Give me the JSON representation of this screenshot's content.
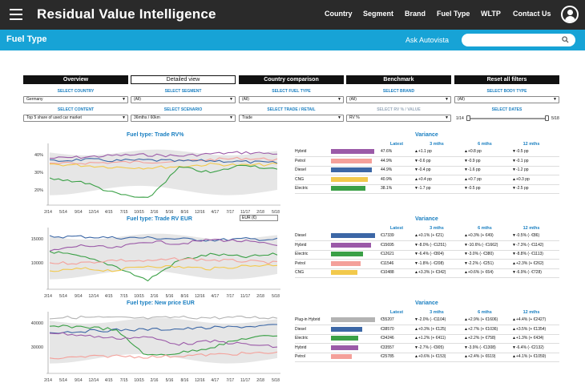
{
  "header": {
    "title": "Residual Value Intelligence",
    "nav": [
      "Country",
      "Segment",
      "Brand",
      "Fuel Type",
      "WLTP",
      "Contact Us"
    ]
  },
  "subheader": {
    "title": "Fuel Type",
    "ask_label": "Ask Autovista",
    "search_placeholder": ""
  },
  "tabs": [
    "Overview",
    "Detailed view",
    "Country comparison",
    "Benchmark",
    "Reset all filters"
  ],
  "filters": {
    "row1": [
      {
        "label": "SELECT COUNTRY",
        "value": "Germany"
      },
      {
        "label": "SELECT SEGMENT",
        "value": "(All)"
      },
      {
        "label": "SELECT FUEL TYPE",
        "value": "(All)"
      },
      {
        "label": "SELECT BRAND",
        "value": "(All)"
      },
      {
        "label": "SELECT BODY TYPE",
        "value": "(All)"
      }
    ],
    "row2": [
      {
        "label": "SELECT CONTENT",
        "value": "Top 5 share of used car market"
      },
      {
        "label": "SELECT SCENARIO",
        "value": "36mths / 60km"
      },
      {
        "label": "SELECT TRADE / RETAIL",
        "value": "Trade"
      },
      {
        "label": "SELECT RV % / VALUE",
        "value": "RV %"
      }
    ],
    "dates": {
      "label": "SELECT DATES",
      "start": "1/14",
      "end": "5/18"
    }
  },
  "colors": {
    "topbar": "#2a2a2a",
    "subbar": "#17a3d6",
    "Hybrid": "#9b5aa8",
    "Petrol": "#f4a09a",
    "Diesel": "#3c67a6",
    "CNG": "#f2c94c",
    "Electric": "#3aa046",
    "Plug-in Hybrid": "#b3b3b3"
  },
  "xticks": [
    "2/14",
    "5/14",
    "9/14",
    "12/14",
    "4/15",
    "7/15",
    "10/15",
    "2/16",
    "5/16",
    "8/16",
    "12/16",
    "4/17",
    "7/17",
    "11/17",
    "2/18",
    "5/18"
  ],
  "var_headers": {
    "title": "Variance",
    "cols": [
      "Latest",
      "3 mths",
      "6 mths",
      "12 mths"
    ]
  },
  "panels": [
    {
      "title": "Fuel type: Trade RV%",
      "yticks": [
        "40%",
        "30%",
        "20%"
      ],
      "rows": [
        {
          "name": "Hybrid",
          "latest": "47.6%",
          "bar": 0.98,
          "m3": "▲+1.1 pp",
          "m6": "▲+0.8 pp",
          "m12": "▼-0.5 pp"
        },
        {
          "name": "Petrol",
          "latest": "44.9%",
          "bar": 0.92,
          "m3": "▼-0.6 pp",
          "m6": "▼-0.9 pp",
          "m12": "▼-0.1 pp"
        },
        {
          "name": "Diesel",
          "latest": "44.9%",
          "bar": 0.92,
          "m3": "▼-0.4 pp",
          "m6": "▼-1.6 pp",
          "m12": "▼-1.2 pp"
        },
        {
          "name": "CNG",
          "latest": "40.9%",
          "bar": 0.84,
          "m3": "▲+0.4 pp",
          "m6": "▲+0.7 pp",
          "m12": "▲+0.3 pp"
        },
        {
          "name": "Electric",
          "latest": "38.1%",
          "bar": 0.78,
          "m3": "▼-1.7 pp",
          "m6": "▼-0.5 pp",
          "m12": "▼-2.5 pp"
        }
      ]
    },
    {
      "title": "Fuel type: Trade RV EUR",
      "currency": "EUR (€)",
      "yticks": [
        "15000",
        "10000"
      ],
      "rows": [
        {
          "name": "Diesel",
          "latest": "€17339",
          "bar": 1.0,
          "m3": "▲+0.1% (+ €21)",
          "m6": "▲+0.3% (+ €49)",
          "m12": "▼-0.5% (- €86)"
        },
        {
          "name": "Hybrid",
          "latest": "€15695",
          "bar": 0.9,
          "m3": "▼-8.0% (- €1251)",
          "m6": "▼-10.6% (- €1662)",
          "m12": "▼-7.3% (- €1142)"
        },
        {
          "name": "Electric",
          "latest": "€12621",
          "bar": 0.73,
          "m3": "▼-6.4% (- €804)",
          "m6": "▼-3.0% (- €380)",
          "m12": "▼-8.8% (- €1113)"
        },
        {
          "name": "Petrol",
          "latest": "€11546",
          "bar": 0.67,
          "m3": "▼-1.8% (- €208)",
          "m6": "▼-2.2% (- €251)",
          "m12": "▲+2.3% (+ €262)"
        },
        {
          "name": "CNG",
          "latest": "€10488",
          "bar": 0.6,
          "m3": "▲+3.3% (+ €342)",
          "m6": "▲+0.6% (+ €64)",
          "m12": "▼-6.9% (- €728)"
        }
      ]
    },
    {
      "title": "Fuel type: New price EUR",
      "yticks": [
        "40000",
        "30000"
      ],
      "rows": [
        {
          "name": "Plug-in Hybrid",
          "latest": "€55207",
          "bar": 1.0,
          "m3": "▼-2.0% (- €1104)",
          "m6": "▲+2.9% (+ €1606)",
          "m12": "▲+4.4% (+ €2427)"
        },
        {
          "name": "Diesel",
          "latest": "€38570",
          "bar": 0.7,
          "m3": "▲+0.3% (+ €125)",
          "m6": "▲+2.7% (+ €1036)",
          "m12": "▲+3.5% (+ €1354)"
        },
        {
          "name": "Electric",
          "latest": "€34246",
          "bar": 0.62,
          "m3": "▲+1.2% (+ €411)",
          "m6": "▲+2.2% (+ €758)",
          "m12": "▲+1.3% (+ €434)"
        },
        {
          "name": "Hybrid",
          "latest": "€33557",
          "bar": 0.61,
          "m3": "▼-2.7% (- €905)",
          "m6": "▼-3.9% (- €1308)",
          "m12": "▼-6.4% (- €2132)"
        },
        {
          "name": "Petrol",
          "latest": "€25785",
          "bar": 0.47,
          "m3": "▲+0.6% (+ €153)",
          "m6": "▲+2.4% (+ €619)",
          "m12": "▲+4.1% (+ €1059)"
        }
      ]
    }
  ]
}
